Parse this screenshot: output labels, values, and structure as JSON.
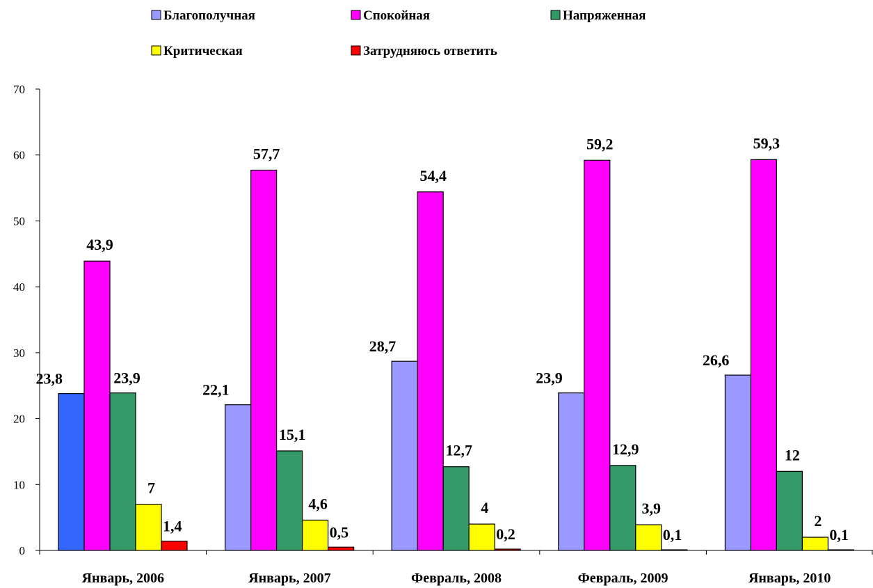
{
  "chart_data": {
    "type": "bar",
    "categories": [
      "Январь, 2006",
      "Январь, 2007",
      "Февраль, 2008",
      "Февраль, 2009",
      "Январь, 2010"
    ],
    "series": [
      {
        "name": "Благополучная",
        "color": "#9999FF",
        "values": [
          23.8,
          22.1,
          28.7,
          23.9,
          26.6
        ],
        "labels": [
          "23,8",
          "22,1",
          "28,7",
          "23,9",
          "26,6"
        ],
        "point_colors": [
          "#3366FF",
          null,
          null,
          null,
          null
        ]
      },
      {
        "name": "Спокойная",
        "color": "#FF00FF",
        "values": [
          43.9,
          57.7,
          54.4,
          59.2,
          59.3
        ],
        "labels": [
          "43,9",
          "57,7",
          "54,4",
          "59,2",
          "59,3"
        ]
      },
      {
        "name": "Напряженная",
        "color": "#339966",
        "values": [
          23.9,
          15.1,
          12.7,
          12.9,
          12
        ],
        "labels": [
          "23,9",
          "15,1",
          "12,7",
          "12,9",
          "12"
        ]
      },
      {
        "name": "Критическая",
        "color": "#FFFF00",
        "values": [
          7,
          4.6,
          4,
          3.9,
          2
        ],
        "labels": [
          "7",
          "4,6",
          "4",
          "3,9",
          "2"
        ]
      },
      {
        "name": "Затрудняюсь ответить",
        "color": "#FF0000",
        "values": [
          1.4,
          0.5,
          0.2,
          0.1,
          0.1
        ],
        "labels": [
          "1,4",
          "0,5",
          "0,2",
          "0,1",
          "0,1"
        ]
      }
    ],
    "ylim": [
      0,
      70
    ],
    "yticks": [
      0,
      10,
      20,
      30,
      40,
      50,
      60,
      70
    ],
    "grid": false,
    "legend_position": "top",
    "title": "",
    "xlabel": "",
    "ylabel": ""
  }
}
